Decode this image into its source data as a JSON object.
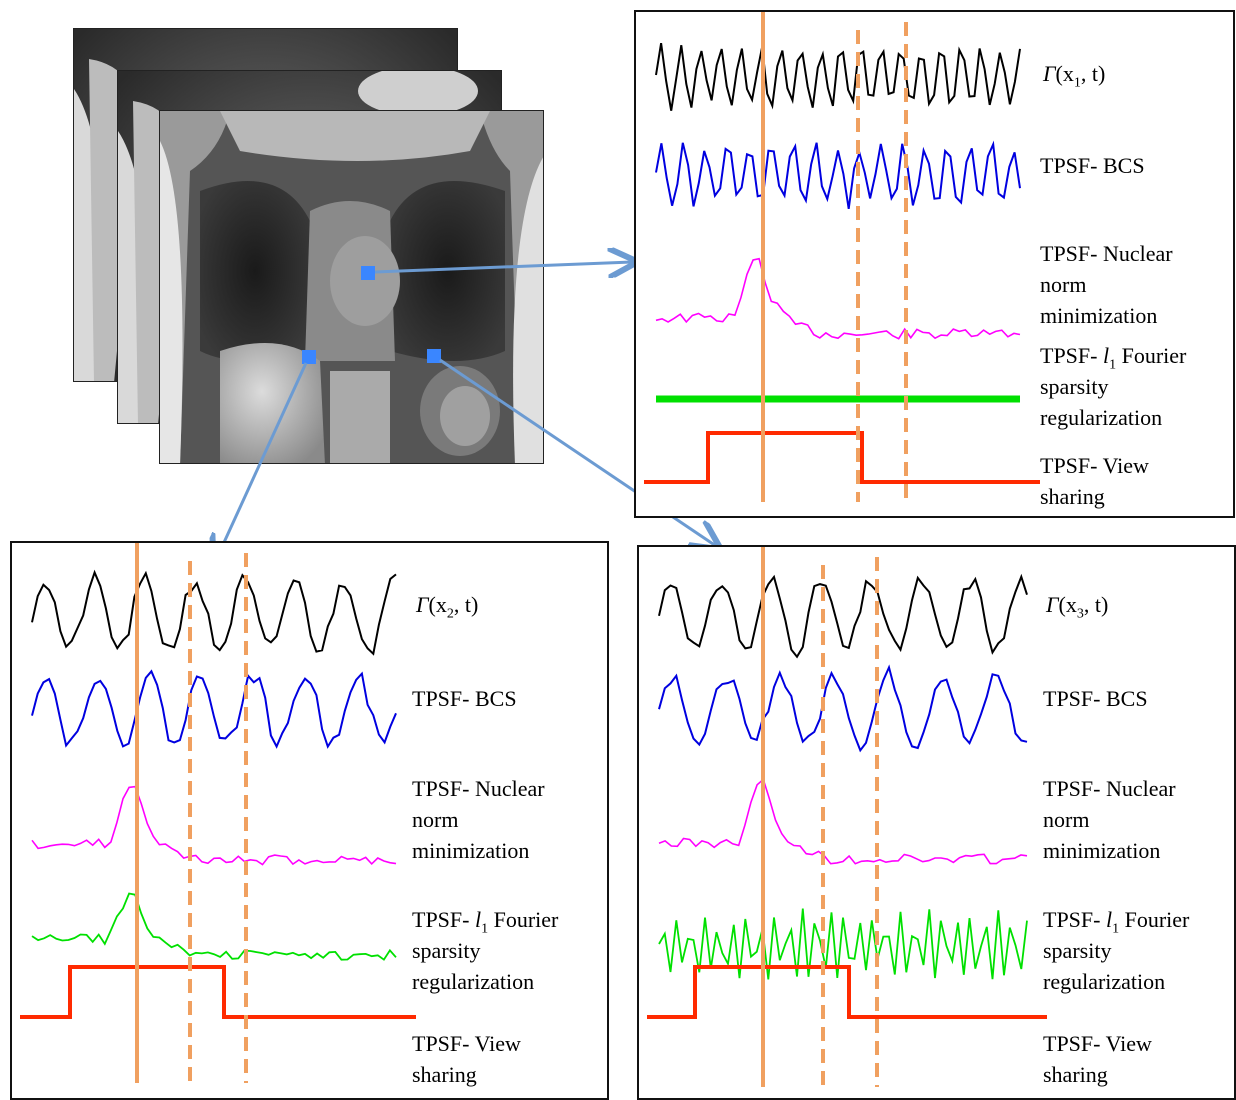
{
  "colors": {
    "gamma": "#000000",
    "bcs": "#0000e0",
    "nuclear": "#ff00ff",
    "fourier": "#00e000",
    "view_sharing": "#ff2a00",
    "time_marker": "#f0a060",
    "arrow": "#6c9bd2",
    "pixel_marker": "#3a86ff"
  },
  "mri_stack": {
    "frames": [
      "mri-frame-back",
      "mri-frame-middle",
      "mri-frame-front"
    ],
    "selected_pixels": [
      "x1",
      "x2",
      "x3"
    ]
  },
  "panels": [
    {
      "id": "x1",
      "labels": {
        "gamma_prefix": "Γ",
        "gamma_var": "(x",
        "gamma_sub": "1",
        "gamma_suffix": ", t)",
        "bcs": "TPSF- BCS",
        "nuclear_1": "TPSF- Nuclear",
        "nuclear_2": "norm",
        "nuclear_3": "minimization",
        "fourier_prefix": "TPSF- ",
        "fourier_l": "l",
        "fourier_sub": "1",
        "fourier_suffix": " Fourier",
        "fourier_2": "sparsity",
        "fourier_3": "regularization",
        "view_1": "TPSF- View",
        "view_2": "sharing"
      }
    },
    {
      "id": "x2",
      "labels": {
        "gamma_prefix": "Γ",
        "gamma_var": "(x",
        "gamma_sub": "2",
        "gamma_suffix": ", t)",
        "bcs": "TPSF- BCS",
        "nuclear_1": "TPSF- Nuclear",
        "nuclear_2": "norm",
        "nuclear_3": "minimization",
        "fourier_prefix": "TPSF- ",
        "fourier_l": "l",
        "fourier_sub": "1",
        "fourier_suffix": " Fourier",
        "fourier_2": "sparsity",
        "fourier_3": "regularization",
        "view_1": "TPSF- View",
        "view_2": "sharing"
      }
    },
    {
      "id": "x3",
      "labels": {
        "gamma_prefix": "Γ",
        "gamma_var": "(x",
        "gamma_sub": "3",
        "gamma_suffix": ", t)",
        "bcs": "TPSF- BCS",
        "nuclear_1": "TPSF- Nuclear",
        "nuclear_2": "norm",
        "nuclear_3": "minimization",
        "fourier_prefix": "TPSF- ",
        "fourier_l": "l",
        "fourier_sub": "1",
        "fourier_suffix": " Fourier",
        "fourier_2": "sparsity",
        "fourier_3": "regularization",
        "view_1": "TPSF- View",
        "view_2": "sharing"
      }
    }
  ]
}
